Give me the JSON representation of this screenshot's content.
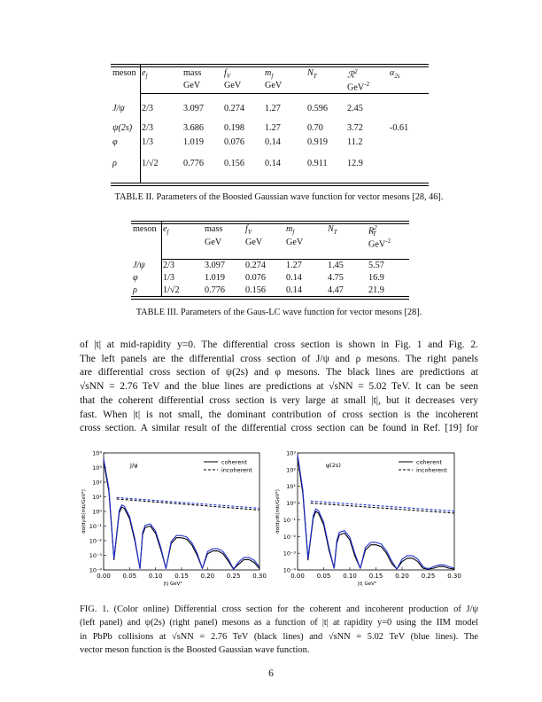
{
  "table2": {
    "headers": [
      "meson",
      "e_f",
      "mass",
      "f_V",
      "m_f",
      "N_T",
      "R^2",
      "α_2s"
    ],
    "header_display": [
      "meson",
      "e",
      "mass",
      "f",
      "m",
      "N",
      "ℛ",
      "α"
    ],
    "header_subs": [
      "",
      "f",
      "",
      "V",
      "f",
      "T",
      "",
      "2s"
    ],
    "header_sups": [
      "",
      "",
      "",
      "",
      "",
      "",
      "2",
      ""
    ],
    "units": [
      "",
      "",
      "GeV",
      "GeV",
      "GeV",
      "",
      "GeV",
      ""
    ],
    "unit_sups": [
      "",
      "",
      "",
      "",
      "",
      "",
      "-2",
      ""
    ],
    "rows": [
      [
        "J/ψ",
        "2/3",
        "3.097",
        "0.274",
        "1.27",
        "0.596",
        "2.45",
        ""
      ],
      [
        "ψ(2s)",
        "2/3",
        "3.686",
        "0.198",
        "1.27",
        "0.70",
        "3.72",
        "-0.61"
      ],
      [
        "φ",
        "1/3",
        "1.019",
        "0.076",
        "0.14",
        "0.919",
        "11.2",
        ""
      ],
      [
        "ρ",
        "1/√2",
        "0.776",
        "0.156",
        "0.14",
        "0.911",
        "12.9",
        ""
      ]
    ],
    "caption": "TABLE II. Parameters of the Boosted Gaussian wave function for vector mesons [28, 46]."
  },
  "table3": {
    "headers": [
      "meson",
      "e_f",
      "mass",
      "f_V",
      "m_f",
      "N_T",
      "R_T^2"
    ],
    "header_display": [
      "meson",
      "e",
      "mass",
      "f",
      "m",
      "N",
      "R"
    ],
    "header_subs": [
      "",
      "f",
      "",
      "V",
      "f",
      "T",
      "T"
    ],
    "header_sups": [
      "",
      "",
      "",
      "",
      "",
      "",
      "2"
    ],
    "units": [
      "",
      "",
      "GeV",
      "GeV",
      "GeV",
      "",
      "GeV"
    ],
    "unit_sups": [
      "",
      "",
      "",
      "",
      "",
      "",
      "-2"
    ],
    "rows": [
      [
        "J/ψ",
        "2/3",
        "3.097",
        "0.274",
        "1.27",
        "1.45",
        "5.57"
      ],
      [
        "φ",
        "1/3",
        "1.019",
        "0.076",
        "0.14",
        "4.75",
        "16.9"
      ],
      [
        "ρ",
        "1/√2",
        "0.776",
        "0.156",
        "0.14",
        "4.47",
        "21.9"
      ]
    ],
    "caption": "TABLE III. Parameters of the Gaus-LC wave function for vector mesons [28]."
  },
  "paragraph_lines": [
    "of |t| at mid-rapidity y=0.  The differential cross section is shown in Fig. 1 and Fig. 2.",
    "The left panels are the differential cross section of J/ψ and ρ mesons.  The right panels",
    "are differential cross section of ψ(2s) and φ mesons.  The black lines are predictions at",
    "√sNN = 2.76 TeV and the blue lines are predictions at √sNN = 5.02 TeV.  It can be seen",
    "that the coherent differential cross section is very large at small |t|, but it decreases very",
    "fast.  When |t| is not small, the dominant contribution of cross section is the incoherent",
    "cross section.  A similar result of the differential cross section can be found in Ref. [19] for"
  ],
  "figure_caption_lines": [
    "FIG. 1. (Color online) Differential cross section for the coherent and incoherent production of J/ψ",
    "(left panel) and ψ(2s) (right panel) mesons as a function of |t| at rapidity y=0 using the IIM model",
    "in PbPb collisions at √sNN = 2.76 TeV (black lines) and √sNN = 5.02 TeV (blue lines).  The",
    "vector meson function is the Boosted Gaussian wave function."
  ],
  "page_number": "6",
  "colors": {
    "energy_2760": "#000000",
    "energy_5020": "#1f2fd0"
  },
  "chart_data": [
    {
      "type": "line",
      "panel_label": "J/ψ",
      "xlabel": "|t| GeV²",
      "ylabel": "dσ/dydt(mb/GeV²)",
      "xlim": [
        0.0,
        0.3
      ],
      "ylim_log10": [
        -4,
        4
      ],
      "yscale": "log",
      "x_ticks": [
        "0.00",
        "0.05",
        "0.10",
        "0.15",
        "0.20",
        "0.25",
        "0.30"
      ],
      "y_ticks": [
        "10⁴",
        "10³",
        "10²",
        "10¹",
        "10⁰",
        "10⁻¹",
        "10⁻²",
        "10⁻³",
        "10⁻⁴"
      ],
      "legend": {
        "position": "top-right",
        "entries": [
          "coherent",
          "incoherent"
        ]
      },
      "series": [
        {
          "name": "coherent",
          "energy": "2.76 TeV",
          "color": "#000000",
          "style": "solid",
          "x": [
            0.0,
            0.01,
            0.02,
            0.03,
            0.035,
            0.04,
            0.05,
            0.06,
            0.07,
            0.075,
            0.08,
            0.09,
            0.1,
            0.11,
            0.12,
            0.13,
            0.14,
            0.15,
            0.16,
            0.17,
            0.18,
            0.19,
            0.2,
            0.21,
            0.22,
            0.23,
            0.24,
            0.25,
            0.26,
            0.27,
            0.28,
            0.29,
            0.3
          ],
          "log10_y": [
            3.4,
            1.4,
            -3.3,
            -0.1,
            0.3,
            0.2,
            -0.5,
            -2.0,
            -3.9,
            -1.6,
            -1.1,
            -1.0,
            -1.5,
            -2.6,
            -3.9,
            -2.2,
            -1.8,
            -1.8,
            -1.9,
            -2.3,
            -3.0,
            -3.9,
            -2.9,
            -2.7,
            -2.7,
            -2.9,
            -3.4,
            -3.95,
            -3.6,
            -3.3,
            -3.3,
            -3.5,
            -3.9
          ]
        },
        {
          "name": "coherent",
          "energy": "5.02 TeV",
          "color": "#1f2fd0",
          "style": "solid",
          "x": [
            0.0,
            0.01,
            0.02,
            0.03,
            0.035,
            0.04,
            0.05,
            0.06,
            0.07,
            0.075,
            0.08,
            0.09,
            0.1,
            0.11,
            0.12,
            0.13,
            0.14,
            0.15,
            0.16,
            0.17,
            0.18,
            0.19,
            0.2,
            0.21,
            0.22,
            0.23,
            0.24,
            0.25,
            0.26,
            0.27,
            0.28,
            0.29,
            0.3
          ],
          "log10_y": [
            3.6,
            1.6,
            -3.2,
            0.05,
            0.45,
            0.35,
            -0.35,
            -1.85,
            -3.9,
            -1.45,
            -0.95,
            -0.85,
            -1.35,
            -2.45,
            -3.9,
            -2.05,
            -1.65,
            -1.65,
            -1.75,
            -2.15,
            -2.85,
            -3.9,
            -2.75,
            -2.55,
            -2.55,
            -2.75,
            -3.25,
            -3.95,
            -3.45,
            -3.15,
            -3.15,
            -3.35,
            -3.8
          ]
        },
        {
          "name": "incoherent",
          "energy": "2.76 TeV",
          "color": "#000000",
          "style": "dashed",
          "x": [
            0.025,
            0.3
          ],
          "log10_y": [
            0.85,
            0.1
          ]
        },
        {
          "name": "incoherent",
          "energy": "5.02 TeV",
          "color": "#1f2fd0",
          "style": "dashed",
          "x": [
            0.025,
            0.3
          ],
          "log10_y": [
            0.95,
            0.22
          ]
        }
      ]
    },
    {
      "type": "line",
      "panel_label": "ψ(2s)",
      "xlabel": "|t| GeV²",
      "ylabel": "dσ/dydt(mb/GeV²)",
      "xlim": [
        0.0,
        0.3
      ],
      "ylim_log10": [
        -4,
        3
      ],
      "yscale": "log",
      "x_ticks": [
        "0.00",
        "0.05",
        "0.10",
        "0.15",
        "0.20",
        "0.25",
        "0.30"
      ],
      "y_ticks": [
        "10³",
        "10²",
        "10¹",
        "10⁰",
        "10⁻¹",
        "10⁻²",
        "10⁻³",
        "10⁻⁴"
      ],
      "legend": {
        "position": "top-right",
        "entries": [
          "coherent",
          "incoherent"
        ]
      },
      "series": [
        {
          "name": "coherent",
          "energy": "2.76 TeV",
          "color": "#000000",
          "style": "solid",
          "x": [
            0.0,
            0.01,
            0.02,
            0.03,
            0.035,
            0.04,
            0.05,
            0.06,
            0.07,
            0.075,
            0.08,
            0.09,
            0.1,
            0.11,
            0.12,
            0.13,
            0.14,
            0.15,
            0.16,
            0.17,
            0.18,
            0.19,
            0.2,
            0.21,
            0.22,
            0.23,
            0.24,
            0.25,
            0.26,
            0.27,
            0.28,
            0.29,
            0.3
          ],
          "log10_y": [
            2.7,
            0.6,
            -3.4,
            -0.9,
            -0.5,
            -0.6,
            -1.3,
            -2.8,
            -3.9,
            -2.4,
            -1.9,
            -1.8,
            -2.2,
            -3.2,
            -3.9,
            -2.8,
            -2.5,
            -2.5,
            -2.6,
            -3.0,
            -3.6,
            -3.95,
            -3.5,
            -3.3,
            -3.3,
            -3.5,
            -3.9,
            -3.95,
            -3.9,
            -3.8,
            -3.8,
            -3.9,
            -3.95
          ]
        },
        {
          "name": "coherent",
          "energy": "5.02 TeV",
          "color": "#1f2fd0",
          "style": "solid",
          "x": [
            0.0,
            0.01,
            0.02,
            0.03,
            0.035,
            0.04,
            0.05,
            0.06,
            0.07,
            0.075,
            0.08,
            0.09,
            0.1,
            0.11,
            0.12,
            0.13,
            0.14,
            0.15,
            0.16,
            0.17,
            0.18,
            0.19,
            0.2,
            0.21,
            0.22,
            0.23,
            0.24,
            0.25,
            0.26,
            0.27,
            0.28,
            0.29,
            0.3
          ],
          "log10_y": [
            2.9,
            0.8,
            -3.3,
            -0.75,
            -0.35,
            -0.45,
            -1.15,
            -2.65,
            -3.9,
            -2.25,
            -1.75,
            -1.65,
            -2.05,
            -3.05,
            -3.9,
            -2.65,
            -2.35,
            -2.35,
            -2.45,
            -2.85,
            -3.45,
            -3.95,
            -3.35,
            -3.15,
            -3.15,
            -3.35,
            -3.8,
            -3.95,
            -3.8,
            -3.7,
            -3.7,
            -3.8,
            -3.9
          ]
        },
        {
          "name": "incoherent",
          "energy": "2.76 TeV",
          "color": "#000000",
          "style": "dashed",
          "x": [
            0.025,
            0.3
          ],
          "log10_y": [
            0.0,
            -0.6
          ]
        },
        {
          "name": "incoherent",
          "energy": "5.02 TeV",
          "color": "#1f2fd0",
          "style": "dashed",
          "x": [
            0.025,
            0.3
          ],
          "log10_y": [
            0.12,
            -0.48
          ]
        }
      ]
    }
  ]
}
